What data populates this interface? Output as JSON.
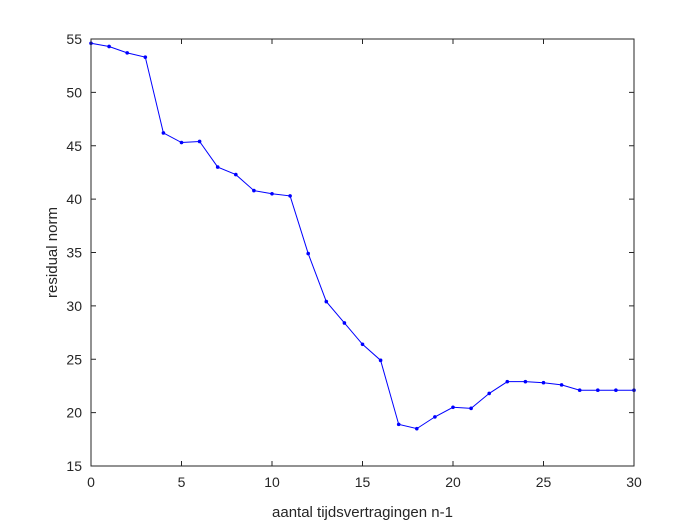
{
  "chart_data": {
    "type": "line",
    "title": "",
    "xlabel": "aantal tijdsvertragingen n-1",
    "ylabel": "residual norm",
    "xlim": [
      0,
      30
    ],
    "ylim": [
      15,
      55
    ],
    "x_ticks": [
      0,
      5,
      10,
      15,
      20,
      25,
      30
    ],
    "y_ticks": [
      15,
      20,
      25,
      30,
      35,
      40,
      45,
      50,
      55
    ],
    "grid": false,
    "legend": "none",
    "series": [
      {
        "color": "#0000ff",
        "marker": "dot",
        "x": [
          0,
          1,
          2,
          3,
          4,
          5,
          6,
          7,
          8,
          9,
          10,
          11,
          12,
          13,
          14,
          15,
          16,
          17,
          18,
          19,
          20,
          21,
          22,
          23,
          24,
          25,
          26,
          27,
          28,
          29,
          30
        ],
        "values": [
          54.6,
          54.3,
          53.7,
          53.3,
          46.2,
          45.3,
          45.4,
          43.0,
          42.3,
          40.8,
          40.5,
          40.3,
          34.9,
          30.4,
          28.4,
          26.4,
          24.9,
          18.9,
          18.5,
          19.6,
          20.5,
          20.4,
          21.8,
          22.9,
          22.9,
          22.8,
          22.6,
          22.1,
          22.1,
          22.1,
          22.1
        ]
      }
    ]
  }
}
